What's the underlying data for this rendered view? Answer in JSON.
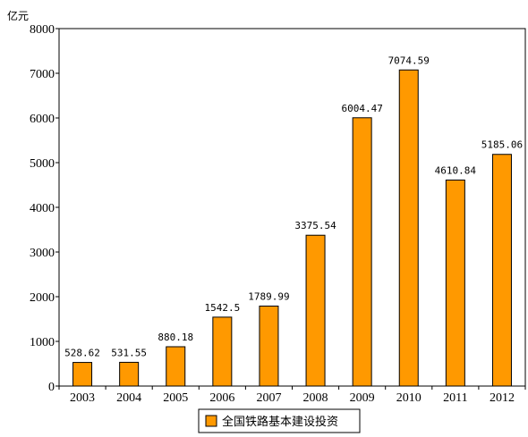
{
  "chart_data": {
    "type": "bar",
    "ylabel": "亿元",
    "ylim": [
      0,
      8000
    ],
    "yticks": [
      0,
      1000,
      2000,
      3000,
      4000,
      5000,
      6000,
      7000,
      8000
    ],
    "categories": [
      "2003",
      "2004",
      "2005",
      "2006",
      "2007",
      "2008",
      "2009",
      "2010",
      "2011",
      "2012"
    ],
    "series": [
      {
        "name": "全国铁路基本建设投资",
        "values": [
          528.62,
          531.55,
          880.18,
          1542.5,
          1789.99,
          3375.54,
          6004.47,
          7074.59,
          4610.84,
          5185.06
        ],
        "labels": [
          "528.62",
          "531.55",
          "880.18",
          "1542.5",
          "1789.99",
          "3375.54",
          "6004.47",
          "7074.59",
          "4610.84",
          "5185.06"
        ],
        "color": "#FF9900"
      }
    ],
    "legend": "bottom-center",
    "grid": false
  }
}
